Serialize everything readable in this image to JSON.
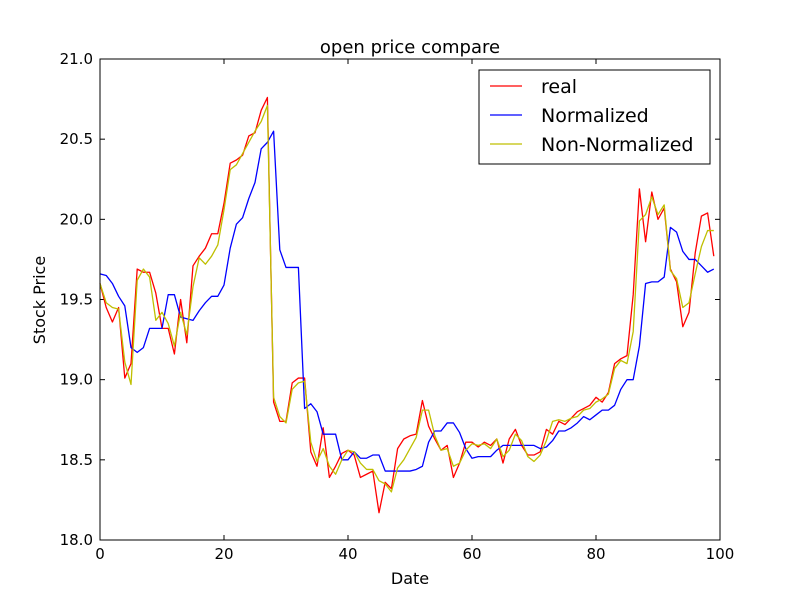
{
  "chart_data": {
    "type": "line",
    "title": "open price compare",
    "xlabel": "Date",
    "ylabel": "Stock Price",
    "xlim": [
      0,
      100
    ],
    "ylim": [
      18.0,
      21.0
    ],
    "xticks": [
      0,
      20,
      40,
      60,
      80,
      100
    ],
    "xtick_labels": [
      "0",
      "20",
      "40",
      "60",
      "80",
      "100"
    ],
    "yticks": [
      18.0,
      18.5,
      19.0,
      19.5,
      20.0,
      20.5,
      21.0
    ],
    "ytick_labels": [
      "18.0",
      "18.5",
      "19.0",
      "19.5",
      "20.0",
      "20.5",
      "21.0"
    ],
    "grid": false,
    "legend_position": "top-right",
    "x": [
      0,
      1,
      2,
      3,
      4,
      5,
      6,
      7,
      8,
      9,
      10,
      11,
      12,
      13,
      14,
      15,
      16,
      17,
      18,
      19,
      20,
      21,
      22,
      23,
      24,
      25,
      26,
      27,
      28,
      29,
      30,
      31,
      32,
      33,
      34,
      35,
      36,
      37,
      38,
      39,
      40,
      41,
      42,
      43,
      44,
      45,
      46,
      47,
      48,
      49,
      50,
      51,
      52,
      53,
      54,
      55,
      56,
      57,
      58,
      59,
      60,
      61,
      62,
      63,
      64,
      65,
      66,
      67,
      68,
      69,
      70,
      71,
      72,
      73,
      74,
      75,
      76,
      77,
      78,
      79,
      80,
      81,
      82,
      83,
      84,
      85,
      86,
      87,
      88,
      89,
      90,
      91,
      92,
      93,
      94,
      95,
      96,
      97,
      98,
      99
    ],
    "series": [
      {
        "name": "real",
        "color": "#ff0000",
        "values": [
          19.6,
          19.45,
          19.36,
          19.45,
          19.01,
          19.1,
          19.69,
          19.67,
          19.67,
          19.54,
          19.32,
          19.32,
          19.16,
          19.5,
          19.23,
          19.71,
          19.77,
          19.82,
          19.91,
          19.91,
          20.1,
          20.35,
          20.37,
          20.4,
          20.52,
          20.54,
          20.68,
          20.76,
          18.86,
          18.74,
          18.74,
          18.98,
          19.01,
          19.01,
          18.55,
          18.46,
          18.7,
          18.39,
          18.46,
          18.54,
          18.56,
          18.53,
          18.39,
          18.41,
          18.43,
          18.17,
          18.36,
          18.32,
          18.57,
          18.63,
          18.65,
          18.66,
          18.87,
          18.71,
          18.63,
          18.56,
          18.59,
          18.39,
          18.48,
          18.61,
          18.61,
          18.58,
          18.61,
          18.59,
          18.63,
          18.48,
          18.63,
          18.69,
          18.59,
          18.53,
          18.53,
          18.55,
          18.69,
          18.66,
          18.74,
          18.72,
          18.76,
          18.8,
          18.82,
          18.84,
          18.89,
          18.86,
          18.92,
          19.1,
          19.13,
          19.15,
          19.53,
          20.19,
          19.86,
          20.17,
          20.0,
          20.07,
          19.69,
          19.61,
          19.33,
          19.42,
          19.79,
          20.02,
          20.04,
          19.77
        ]
      },
      {
        "name": "Normalized",
        "color": "#0000ff",
        "values": [
          19.66,
          19.65,
          19.6,
          19.52,
          19.46,
          19.2,
          19.17,
          19.2,
          19.32,
          19.32,
          19.32,
          19.53,
          19.53,
          19.39,
          19.38,
          19.37,
          19.43,
          19.48,
          19.52,
          19.52,
          19.59,
          19.82,
          19.97,
          20.01,
          20.13,
          20.23,
          20.44,
          20.48,
          20.55,
          19.81,
          19.7,
          19.7,
          19.7,
          18.82,
          18.85,
          18.8,
          18.66,
          18.66,
          18.66,
          18.5,
          18.5,
          18.55,
          18.51,
          18.51,
          18.53,
          18.53,
          18.43,
          18.43,
          18.43,
          18.43,
          18.43,
          18.44,
          18.46,
          18.61,
          18.68,
          18.68,
          18.73,
          18.73,
          18.67,
          18.57,
          18.51,
          18.52,
          18.52,
          18.52,
          18.56,
          18.59,
          18.59,
          18.59,
          18.59,
          18.59,
          18.59,
          18.57,
          18.58,
          18.62,
          18.68,
          18.68,
          18.7,
          18.73,
          18.77,
          18.75,
          18.78,
          18.81,
          18.81,
          18.84,
          18.94,
          19.0,
          19.0,
          19.21,
          19.6,
          19.61,
          19.61,
          19.64,
          19.95,
          19.92,
          19.8,
          19.75,
          19.75,
          19.71,
          19.67,
          19.69
        ]
      },
      {
        "name": "Non-Normalized",
        "color": "#bfbf00",
        "values": [
          19.6,
          19.48,
          19.45,
          19.44,
          19.11,
          18.97,
          19.62,
          19.69,
          19.64,
          19.37,
          19.42,
          19.35,
          19.21,
          19.42,
          19.28,
          19.58,
          19.76,
          19.72,
          19.77,
          19.84,
          20.06,
          20.31,
          20.34,
          20.41,
          20.48,
          20.55,
          20.61,
          20.71,
          18.89,
          18.77,
          18.73,
          18.94,
          18.98,
          18.99,
          18.61,
          18.49,
          18.57,
          18.46,
          18.41,
          18.5,
          18.56,
          18.55,
          18.48,
          18.44,
          18.44,
          18.37,
          18.35,
          18.3,
          18.45,
          18.5,
          18.57,
          18.64,
          18.81,
          18.81,
          18.65,
          18.56,
          18.57,
          18.46,
          18.48,
          18.56,
          18.6,
          18.59,
          18.6,
          18.57,
          18.63,
          18.52,
          18.56,
          18.66,
          18.62,
          18.52,
          18.49,
          18.53,
          18.62,
          18.74,
          18.75,
          18.74,
          18.76,
          18.77,
          18.81,
          18.82,
          18.86,
          18.88,
          18.91,
          19.07,
          19.12,
          19.1,
          19.3,
          19.99,
          20.03,
          20.14,
          20.03,
          20.09,
          19.68,
          19.63,
          19.45,
          19.48,
          19.66,
          19.83,
          19.93,
          19.93
        ]
      }
    ]
  }
}
